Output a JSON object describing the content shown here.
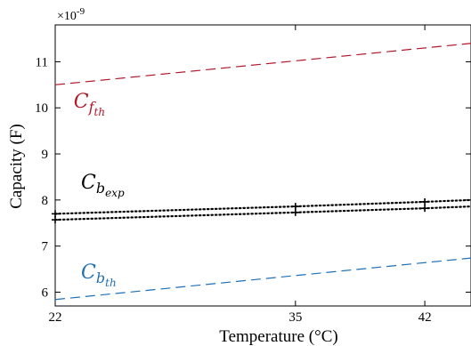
{
  "chart_data": {
    "type": "line",
    "xlabel": "Temperature (°C)",
    "ylabel": "Capacity (F)",
    "y_exponent_label": "×10",
    "y_exponent_power": "-9",
    "xlim": [
      22,
      44.5
    ],
    "ylim": [
      5.7,
      11.8
    ],
    "x_ticks": [
      22,
      35,
      42
    ],
    "y_ticks": [
      6,
      7,
      8,
      9,
      10,
      11
    ],
    "grid": false,
    "series": [
      {
        "name": "C_f_th",
        "label_main": "C",
        "label_sub": "f",
        "label_subsub": "th",
        "color": "#b0182a",
        "style": "dashed",
        "x": [
          22,
          44.5
        ],
        "y": [
          10.5,
          11.4
        ]
      },
      {
        "name": "C_b_exp (upper)",
        "label_main": "C",
        "label_sub": "b",
        "label_subsub": "exp",
        "color": "#000000",
        "style": "dotted",
        "x": [
          22,
          35,
          42,
          44.5
        ],
        "y": [
          7.7,
          7.86,
          7.96,
          8.0
        ],
        "markers": "plus"
      },
      {
        "name": "C_b_exp (lower)",
        "color": "#000000",
        "style": "dotted",
        "x": [
          22,
          35,
          42,
          44.5
        ],
        "y": [
          7.57,
          7.73,
          7.82,
          7.86
        ],
        "markers": "plus"
      },
      {
        "name": "C_b_th",
        "label_main": "C",
        "label_sub": "b",
        "label_subsub": "th",
        "color": "#1f6fb4",
        "style": "dashed",
        "x": [
          22,
          44.5
        ],
        "y": [
          5.84,
          6.74
        ]
      }
    ]
  }
}
